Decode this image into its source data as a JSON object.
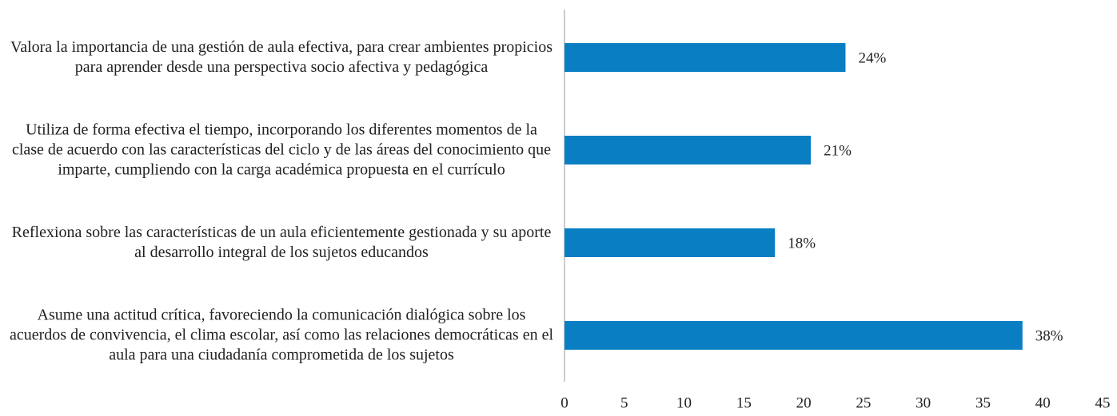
{
  "chart_data": {
    "type": "bar",
    "orientation": "horizontal",
    "categories": [
      "Valora la importancia de una gestión de aula efectiva, para crear ambientes propicios para aprender desde una perspectiva socio afectiva y pedagógica",
      "Utiliza de forma efectiva el tiempo, incorporando los diferentes momentos de la clase de acuerdo con las características del ciclo y de las áreas del conocimiento que imparte, cumpliendo con la carga académica propuesta en el currículo",
      "Reflexiona sobre las características de un aula eficientemente gestionada y su aporte al desarrollo integral de los sujetos educandos",
      "Asume una actitud crítica, favoreciendo la comunicación dialógica sobre los acuerdos de convivencia, el clima escolar, así como las relaciones democráticas en el aula para una ciudadanía comprometida de los sujetos"
    ],
    "values": [
      23.5,
      20.6,
      17.6,
      38.3
    ],
    "value_labels": [
      "24%",
      "21%",
      "18%",
      "38%"
    ],
    "color": "#0a7ec2",
    "xlim": [
      0,
      45
    ],
    "xticks": [
      0,
      5,
      10,
      15,
      20,
      25,
      30,
      35,
      40,
      45
    ],
    "grid": false
  }
}
